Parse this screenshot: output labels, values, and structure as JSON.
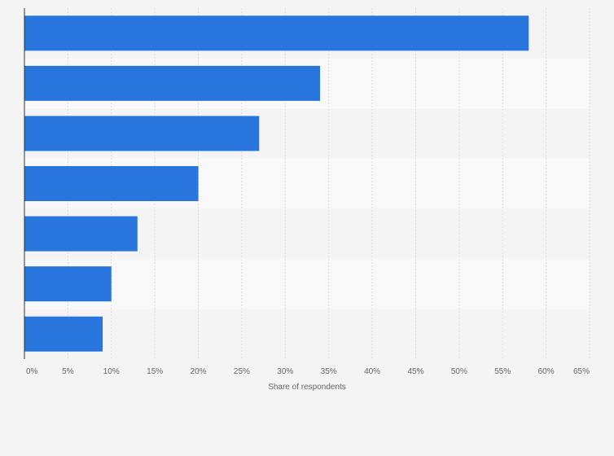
{
  "chart_data": {
    "type": "bar",
    "orientation": "horizontal",
    "categories": [
      "",
      "",
      "",
      "",
      "",
      "",
      ""
    ],
    "values": [
      58,
      34,
      27,
      20,
      13,
      10,
      9
    ],
    "xlabel": "Share of respondents",
    "ylabel": "",
    "xlim": [
      0,
      65
    ],
    "x_tick_labels": [
      "0%",
      "5%",
      "10%",
      "15%",
      "20%",
      "25%",
      "30%",
      "35%",
      "40%",
      "45%",
      "50%",
      "55%",
      "60%",
      "65%"
    ],
    "grid": true,
    "legend": "none",
    "colors": {
      "bar": "#2876dd",
      "background": "#f4f4f4",
      "band_light": "#f9f9f9",
      "band_dark": "#f4f4f4",
      "gridline": "#dddddd",
      "axis": "#333333",
      "text": "#666666"
    }
  }
}
